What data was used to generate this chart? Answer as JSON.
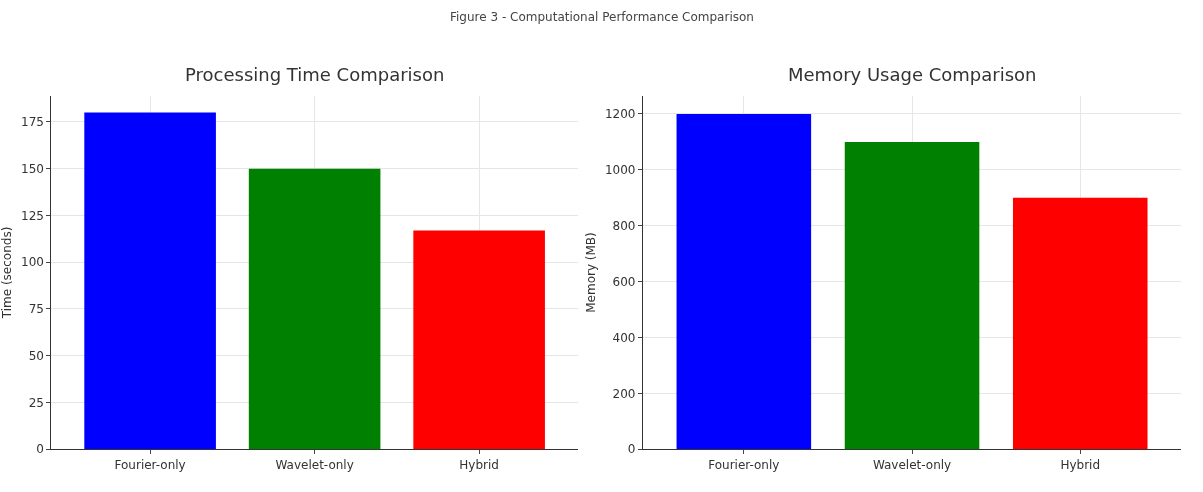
{
  "chart_data": [
    {
      "type": "bar",
      "title": "Processing Time Comparison",
      "ylabel": "Time (seconds)",
      "annotations": [
        "Figure 3 - Computational Performance Comparison"
      ],
      "categories": [
        "Fourier-only",
        "Wavelet-only",
        "Hybrid"
      ],
      "values": [
        180,
        150,
        117
      ],
      "colors": [
        "#0000ff",
        "#008000",
        "#ff0000"
      ],
      "ylim": [
        0,
        189
      ],
      "yticks": [
        0,
        25,
        50,
        75,
        100,
        125,
        150,
        175
      ],
      "grid": true
    },
    {
      "type": "bar",
      "title": "Memory Usage Comparison",
      "ylabel": "Memory (MB)",
      "categories": [
        "Fourier-only",
        "Wavelet-only",
        "Hybrid"
      ],
      "values": [
        1200,
        1100,
        900
      ],
      "colors": [
        "#0000ff",
        "#008000",
        "#ff0000"
      ],
      "ylim": [
        0,
        1265
      ],
      "yticks": [
        0,
        200,
        400,
        600,
        800,
        1000,
        1200
      ],
      "grid": true
    }
  ]
}
